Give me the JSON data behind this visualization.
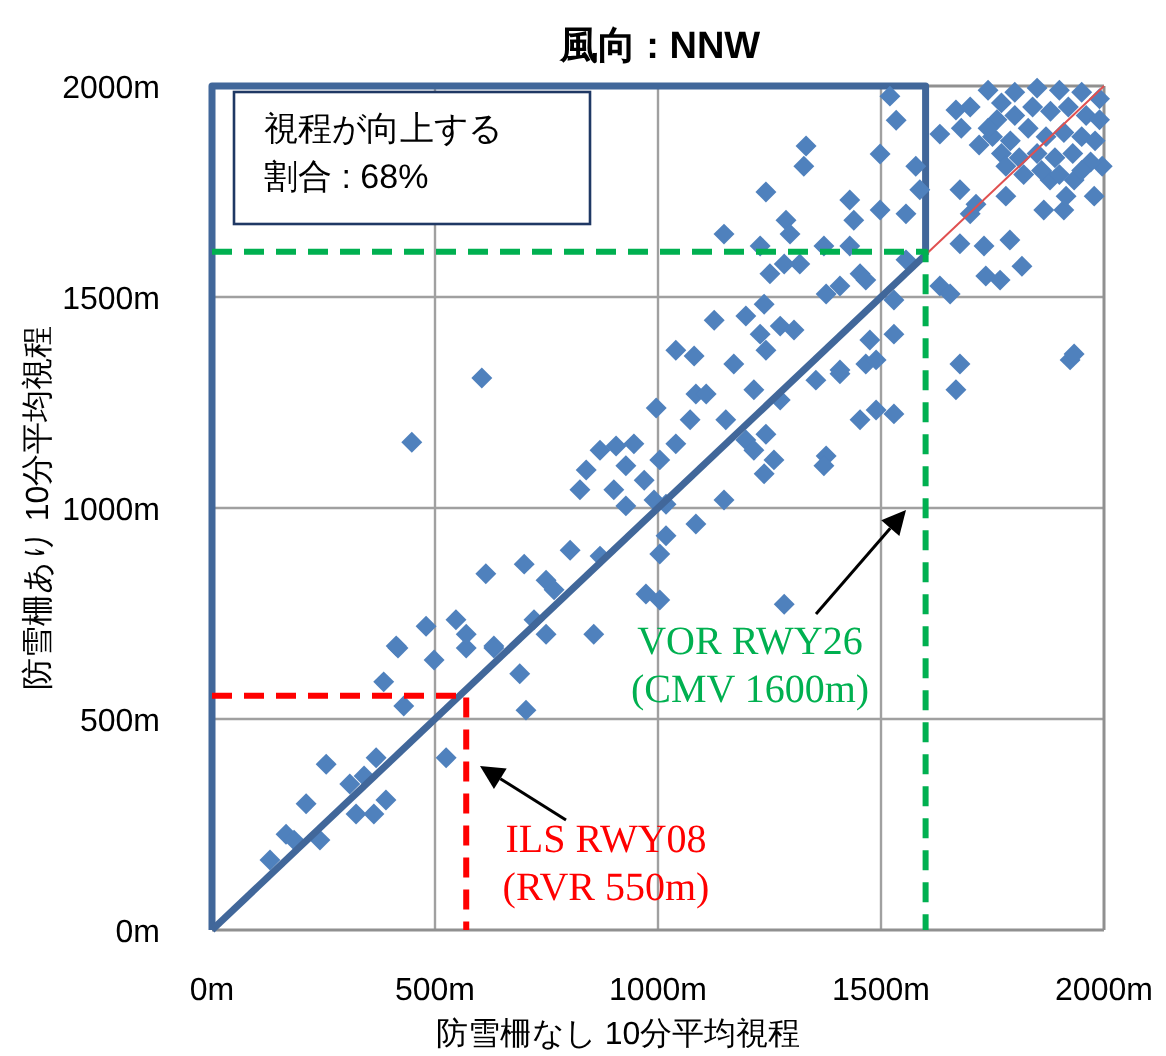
{
  "chart_data": {
    "type": "scatter",
    "title": "風向 : NNW",
    "xlabel": "防雪柵なし 10分平均視程",
    "ylabel": "防雪柵あり 10分平均視程",
    "xlim": [
      0,
      2000
    ],
    "ylim": [
      0,
      2000
    ],
    "xticks": [
      {
        "value": 0,
        "label": "0m"
      },
      {
        "value": 500,
        "label": "500m"
      },
      {
        "value": 1000,
        "label": "1000m"
      },
      {
        "value": 1500,
        "label": "1500m"
      },
      {
        "value": 2000,
        "label": "2000m"
      }
    ],
    "yticks": [
      {
        "value": 0,
        "label": "0m"
      },
      {
        "value": 500,
        "label": "500m"
      },
      {
        "value": 1000,
        "label": "1000m"
      },
      {
        "value": 1500,
        "label": "1500m"
      },
      {
        "value": 2000,
        "label": "2000m"
      }
    ],
    "grid": true,
    "annotations": [
      "視程が向上する割合 : 68%",
      "VOR RWY26\n(CMV 1600m)",
      "ILS RWY08\n(RVR 550m)"
    ],
    "series": [
      {
        "color": "#4f81bd",
        "marker": "diamond",
        "x": [
          417,
          498,
          570,
          632,
          690,
          704,
          385,
          430,
          525,
          256,
          368,
          309,
          341,
          390,
          323,
          363,
          211,
          166,
          184,
          242,
          130,
          605,
          448,
          996,
          1085,
          1108,
          1215,
          1274,
          1072,
          1152,
          870,
          906,
          946,
          928,
          839,
          825,
          901,
          969,
          1004,
          1040,
          928,
          991,
          1018,
          1148,
          1085,
          1018,
          1004,
          870,
          803,
          700,
          614,
          749,
          767,
          973,
          1004,
          1283,
          480,
          547,
          570,
          413,
          632,
          722,
          749,
          856,
          1197,
          1242,
          1260,
          1215,
          1238,
          1377,
          1372,
          1354,
          1408,
          1453,
          1489,
          1529,
          1668,
          1677,
          1924,
          1170,
          1466,
          1332,
          1327,
          1498,
          1534,
          1520,
          1242,
          1430,
          1439,
          1498,
          1556,
          1578,
          1587,
          1287,
          1296,
          1148,
          1229,
          1318,
          1283,
          1372,
          1430,
          1453,
          1408,
          1377,
          1466,
          1529,
          1556,
          1251,
          1238,
          1197,
          1126,
          1274,
          1229,
          1305,
          1242,
          1040,
          1081,
          1529,
          1475,
          1489,
          1408,
          1933,
          1632,
          1668,
          1677,
          1700,
          1713,
          1677,
          1731,
          1789,
          1632,
          1655,
          1735,
          1767,
          1816,
          1780,
          1865,
          1910,
          1915,
          1978,
          1879,
          1933,
          1996,
          1740,
          1770,
          1800,
          1850,
          1900,
          1950,
          1990,
          1760,
          1800,
          1840,
          1880,
          1920,
          1960,
          1990,
          1750,
          1790,
          1830,
          1870,
          1910,
          1950,
          1980,
          1770,
          1810,
          1850,
          1890,
          1930,
          1970,
          1740,
          1780,
          1820,
          1860,
          1900,
          1950,
          1700,
          1720,
          1680
        ],
        "values": [
          668,
          640,
          668,
          668,
          607,
          521,
          588,
          531,
          408,
          393,
          408,
          346,
          365,
          308,
          275,
          275,
          299,
          227,
          213,
          213,
          166,
          1308,
          1156,
          1237,
          1270,
          1270,
          1280,
          1256,
          1209,
          1209,
          1137,
          1147,
          1152,
          1100,
          1090,
          1043,
          1043,
          1066,
          1114,
          1152,
          1005,
          1019,
          1009,
          1019,
          962,
          934,
          891,
          886,
          900,
          867,
          844,
          829,
          806,
          796,
          782,
          772,
          720,
          735,
          701,
          673,
          673,
          735,
          701,
          701,
          1161,
          1175,
          1114,
          1137,
          1081,
          1123,
          1100,
          1303,
          1318,
          1209,
          1232,
          1223,
          1280,
          1341,
          1351,
          1341,
          1341,
          1858,
          1810,
          1839,
          1919,
          1976,
          1749,
          1730,
          1682,
          1706,
          1697,
          1810,
          1754,
          1682,
          1649,
          1649,
          1621,
          1578,
          1578,
          1621,
          1621,
          1555,
          1526,
          1507,
          1540,
          1493,
          1588,
          1555,
          1483,
          1455,
          1445,
          1431,
          1412,
          1422,
          1374,
          1374,
          1360,
          1412,
          1398,
          1351,
          1327,
          1365,
          1886,
          1943,
          1754,
          1697,
          1720,
          1626,
          1621,
          1635,
          1526,
          1507,
          1550,
          1540,
          1573,
          1739,
          1706,
          1706,
          1739,
          1739,
          1777,
          1777,
          1810,
          1990,
          1960,
          1985,
          1995,
          1990,
          1985,
          1970,
          1920,
          1930,
          1950,
          1940,
          1950,
          1930,
          1920,
          1880,
          1870,
          1900,
          1880,
          1890,
          1880,
          1870,
          1840,
          1830,
          1840,
          1830,
          1840,
          1820,
          1900,
          1810,
          1790,
          1800,
          1790,
          1800,
          1950,
          1860,
          1900
        ]
      },
      {
        "type": "line",
        "color": "#41679a",
        "marker": "none",
        "line_style": "solid",
        "x": [
          0,
          1600
        ],
        "values": [
          0,
          1600
        ]
      },
      {
        "type": "line",
        "color": "#e05050",
        "marker": "none",
        "line_style": "solid",
        "x": [
          1600,
          2000
        ],
        "values": [
          1600,
          2000
        ]
      },
      {
        "type": "line",
        "color": "#00b050",
        "marker": "none",
        "line_style": "dashed",
        "x": [
          0,
          1600,
          1600
        ],
        "values": [
          1607,
          1607,
          0
        ]
      },
      {
        "type": "line",
        "color": "#ff0000",
        "marker": "none",
        "line_style": "dashed",
        "x": [
          0,
          570,
          570
        ],
        "values": [
          555,
          555,
          0
        ]
      }
    ]
  }
}
